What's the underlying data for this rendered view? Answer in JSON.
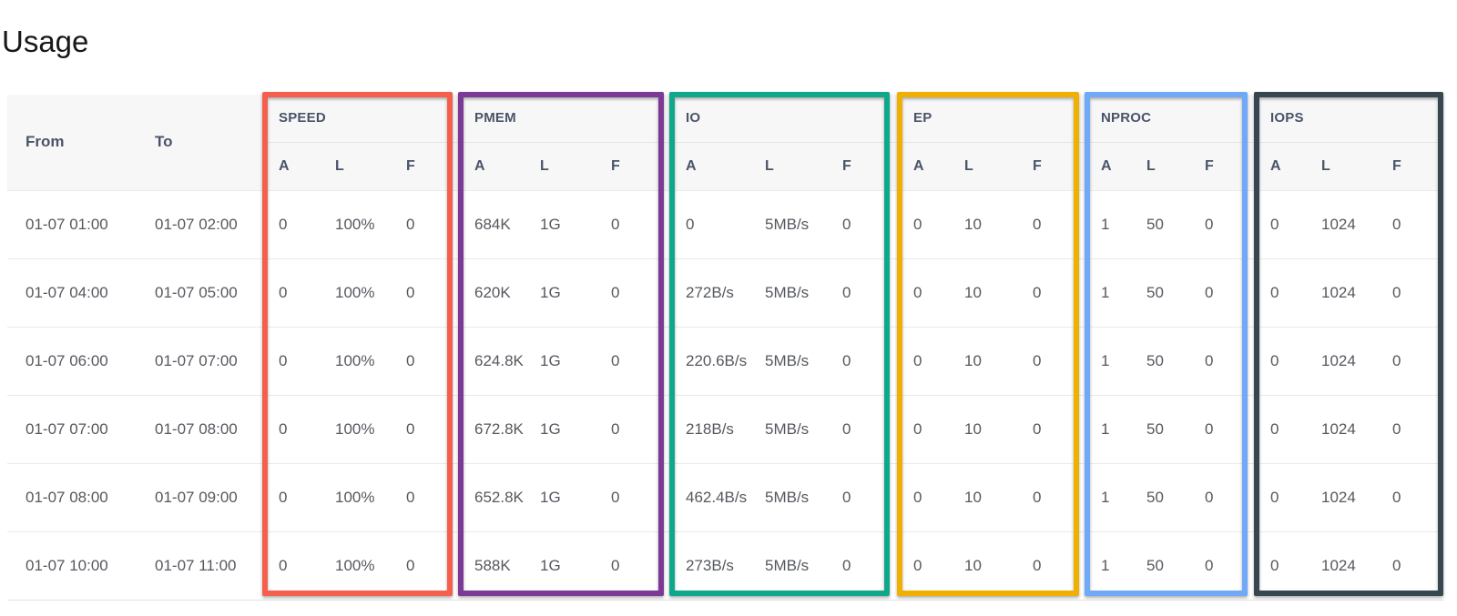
{
  "title": "Usage",
  "table": {
    "left_columns": [
      "From",
      "To"
    ],
    "sub_columns": [
      "A",
      "L",
      "F"
    ],
    "groups": [
      {
        "label": "SPEED",
        "color": "#f4604d"
      },
      {
        "label": "PMEM",
        "color": "#7c3a96"
      },
      {
        "label": "IO",
        "color": "#10a88b"
      },
      {
        "label": "EP",
        "color": "#f0b002"
      },
      {
        "label": "NPROC",
        "color": "#6fa9f8"
      },
      {
        "label": "IOPS",
        "color": "#36474f"
      }
    ],
    "rows": [
      {
        "from": "01-07 01:00",
        "to": "01-07 02:00",
        "values": [
          [
            "0",
            "100%",
            "0"
          ],
          [
            "684K",
            "1G",
            "0"
          ],
          [
            "0",
            "5MB/s",
            "0"
          ],
          [
            "0",
            "10",
            "0"
          ],
          [
            "1",
            "50",
            "0"
          ],
          [
            "0",
            "1024",
            "0"
          ]
        ]
      },
      {
        "from": "01-07 04:00",
        "to": "01-07 05:00",
        "values": [
          [
            "0",
            "100%",
            "0"
          ],
          [
            "620K",
            "1G",
            "0"
          ],
          [
            "272B/s",
            "5MB/s",
            "0"
          ],
          [
            "0",
            "10",
            "0"
          ],
          [
            "1",
            "50",
            "0"
          ],
          [
            "0",
            "1024",
            "0"
          ]
        ]
      },
      {
        "from": "01-07 06:00",
        "to": "01-07 07:00",
        "values": [
          [
            "0",
            "100%",
            "0"
          ],
          [
            "624.8K",
            "1G",
            "0"
          ],
          [
            "220.6B/s",
            "5MB/s",
            "0"
          ],
          [
            "0",
            "10",
            "0"
          ],
          [
            "1",
            "50",
            "0"
          ],
          [
            "0",
            "1024",
            "0"
          ]
        ]
      },
      {
        "from": "01-07 07:00",
        "to": "01-07 08:00",
        "values": [
          [
            "0",
            "100%",
            "0"
          ],
          [
            "672.8K",
            "1G",
            "0"
          ],
          [
            "218B/s",
            "5MB/s",
            "0"
          ],
          [
            "0",
            "10",
            "0"
          ],
          [
            "1",
            "50",
            "0"
          ],
          [
            "0",
            "1024",
            "0"
          ]
        ]
      },
      {
        "from": "01-07 08:00",
        "to": "01-07 09:00",
        "values": [
          [
            "0",
            "100%",
            "0"
          ],
          [
            "652.8K",
            "1G",
            "0"
          ],
          [
            "462.4B/s",
            "5MB/s",
            "0"
          ],
          [
            "0",
            "10",
            "0"
          ],
          [
            "1",
            "50",
            "0"
          ],
          [
            "0",
            "1024",
            "0"
          ]
        ]
      },
      {
        "from": "01-07 10:00",
        "to": "01-07 11:00",
        "values": [
          [
            "0",
            "100%",
            "0"
          ],
          [
            "588K",
            "1G",
            "0"
          ],
          [
            "273B/s",
            "5MB/s",
            "0"
          ],
          [
            "0",
            "10",
            "0"
          ],
          [
            "1",
            "50",
            "0"
          ],
          [
            "0",
            "1024",
            "0"
          ]
        ]
      }
    ]
  }
}
